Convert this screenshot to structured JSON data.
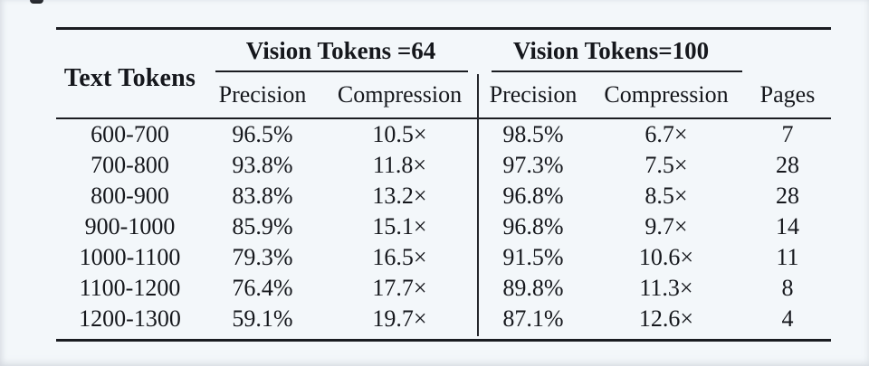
{
  "page": {
    "background": "#f3f7fa",
    "text_color": "#15171c"
  },
  "table": {
    "corner_label": "Text Tokens",
    "group_headers": [
      {
        "label": "Vision Tokens =64"
      },
      {
        "label": "Vision Tokens=100"
      }
    ],
    "column_headers": [
      "Precision",
      "Compression",
      "Precision",
      "Compression",
      "Pages"
    ],
    "rows": [
      [
        "600-700",
        "96.5%",
        "10.5×",
        "98.5%",
        "6.7×",
        "7"
      ],
      [
        "700-800",
        "93.8%",
        "11.8×",
        "97.3%",
        "7.5×",
        "28"
      ],
      [
        "800-900",
        "83.8%",
        "13.2×",
        "96.8%",
        "8.5×",
        "28"
      ],
      [
        "900-1000",
        "85.9%",
        "15.1×",
        "96.8%",
        "9.7×",
        "14"
      ],
      [
        "1000-1100",
        "79.3%",
        "16.5×",
        "91.5%",
        "10.6×",
        "11"
      ],
      [
        "1100-1200",
        "76.4%",
        "17.7×",
        "89.8%",
        "11.3×",
        "8"
      ],
      [
        "1200-1300",
        "59.1%",
        "19.7×",
        "87.1%",
        "12.6×",
        "4"
      ]
    ]
  }
}
